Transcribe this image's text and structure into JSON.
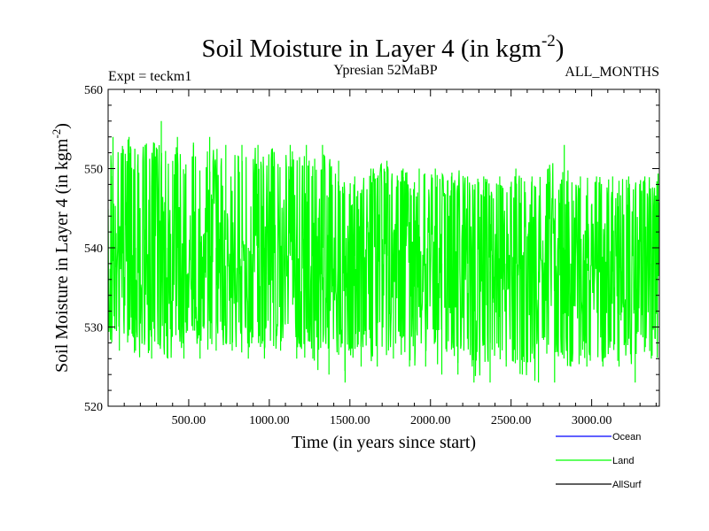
{
  "header": {
    "title_main": "Soil Moisture in Layer 4 (in kgm",
    "title_sup": "-2",
    "title_close": ")",
    "expt": "Expt = teckm1",
    "period": "Ypresian  52MaBP",
    "months": "ALL_MONTHS"
  },
  "chart_data": {
    "type": "line",
    "xlabel": "Time (in years since start)",
    "ylabel_main": "Soil Moisture in Layer 4 (in kgm",
    "ylabel_sup": "-2",
    "ylabel_close": ")",
    "xlim": [
      0,
      3420
    ],
    "ylim": [
      520,
      560
    ],
    "x_ticks": [
      500,
      1000,
      1500,
      2000,
      2500,
      3000
    ],
    "x_tick_labels": [
      "500.00",
      "1000.00",
      "1500.00",
      "2000.00",
      "2500.00",
      "3000.00"
    ],
    "y_ticks": [
      520,
      530,
      540,
      550,
      560
    ],
    "y_tick_labels": [
      "520",
      "530",
      "540",
      "550",
      "560"
    ],
    "legend_position": "below-right",
    "series": [
      {
        "name": "Ocean",
        "color": "#0000ff",
        "x": [],
        "values": []
      },
      {
        "name": "Land",
        "color": "#00ff00",
        "x": [
          0,
          100,
          200,
          300,
          400,
          500,
          600,
          700,
          800,
          900,
          1000,
          1100,
          1200,
          1300,
          1400,
          1500,
          1600,
          1700,
          1800,
          1900,
          2000,
          2100,
          2200,
          2300,
          2400,
          2500,
          2600,
          2700,
          2800,
          2900,
          3000,
          3100,
          3200,
          3300,
          3400
        ],
        "values": [
          539,
          540,
          541,
          540,
          540,
          539,
          540,
          541,
          540,
          540,
          540,
          539,
          540,
          540,
          539,
          539,
          538,
          539,
          538,
          538,
          538,
          539,
          538,
          537,
          538,
          538,
          537,
          538,
          538,
          538,
          538,
          537,
          538,
          538,
          538
        ],
        "band_upper": [
          550,
          551,
          551,
          552,
          551,
          550,
          551,
          551,
          550,
          550,
          551,
          550,
          550,
          551,
          549,
          548,
          548,
          549,
          548,
          548,
          548,
          548,
          548,
          547,
          547,
          548,
          547,
          548,
          547,
          547,
          547,
          547,
          547,
          547,
          547
        ],
        "band_lower": [
          530,
          530,
          529,
          529,
          529,
          529,
          530,
          530,
          529,
          529,
          530,
          529,
          529,
          529,
          528,
          528,
          528,
          529,
          528,
          528,
          528,
          528,
          527,
          527,
          528,
          527,
          527,
          528,
          528,
          527,
          528,
          527,
          527,
          528,
          528
        ],
        "peak_max": [
          554,
          554,
          553,
          556,
          554,
          553,
          554,
          553,
          553,
          553,
          552,
          553,
          553,
          553,
          551,
          549,
          550,
          551,
          550,
          550,
          550,
          549,
          549,
          549,
          549,
          550,
          549,
          550,
          553,
          549,
          549,
          549,
          549,
          549,
          550
        ],
        "peak_min": [
          527,
          527,
          526,
          526,
          526,
          526,
          527,
          527,
          526,
          526,
          527,
          526,
          526,
          524,
          523,
          525,
          525,
          526,
          525,
          525,
          524,
          524,
          523,
          523,
          525,
          524,
          523,
          523,
          525,
          525,
          525,
          525,
          523,
          526,
          526
        ]
      },
      {
        "name": "AllSurf",
        "color": "#000000",
        "x": [],
        "values": []
      }
    ]
  }
}
